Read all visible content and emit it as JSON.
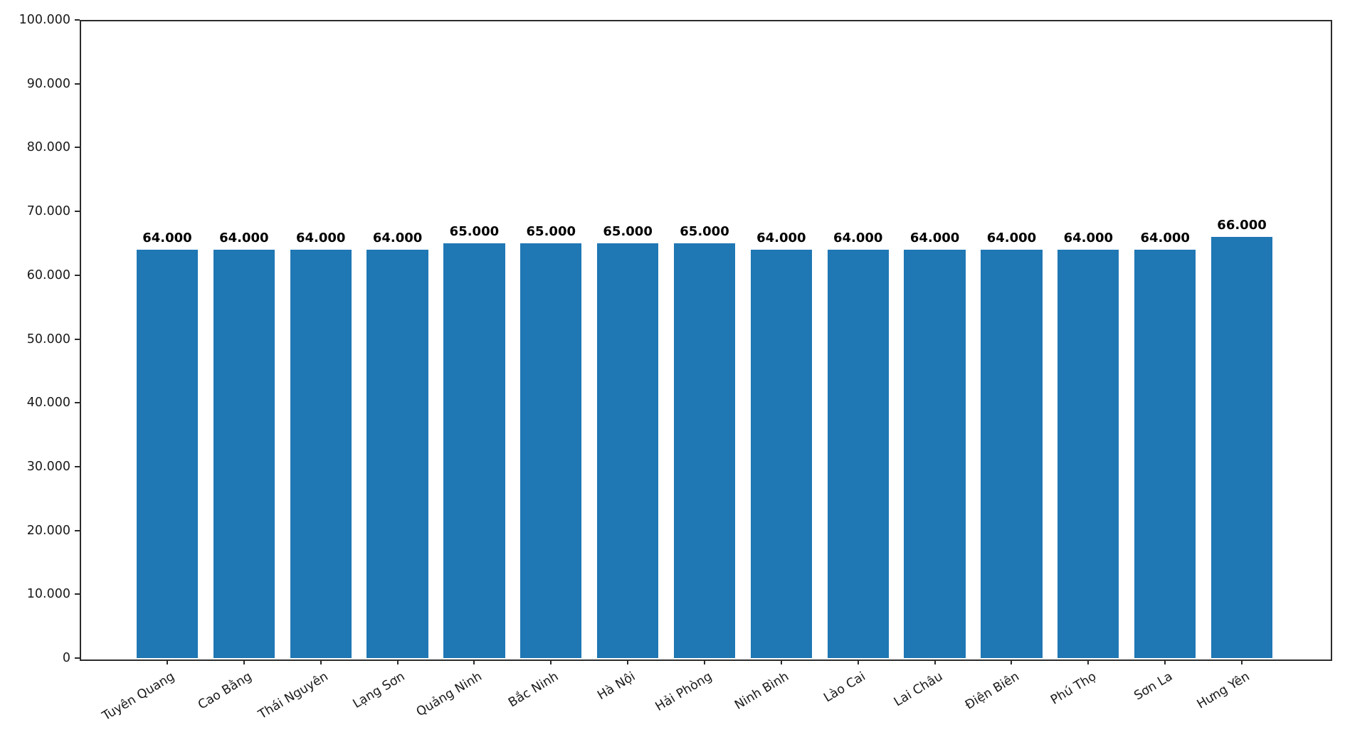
{
  "chart_data": {
    "type": "bar",
    "title": "",
    "xlabel": "",
    "ylabel": "",
    "categories": [
      "Tuyên Quang",
      "Cao Bằng",
      "Thái Nguyên",
      "Lạng Sơn",
      "Quảng Ninh",
      "Bắc Ninh",
      "Hà Nội",
      "Hải Phòng",
      "Ninh Bình",
      "Lào Cai",
      "Lai Châu",
      "Điện Biên",
      "Phú Thọ",
      "Sơn La",
      "Hưng Yên"
    ],
    "values": [
      64000,
      64000,
      64000,
      64000,
      65000,
      65000,
      65000,
      65000,
      64000,
      64000,
      64000,
      64000,
      64000,
      64000,
      66000
    ],
    "bar_labels": [
      "64.000",
      "64.000",
      "64.000",
      "64.000",
      "65.000",
      "65.000",
      "65.000",
      "65.000",
      "64.000",
      "64.000",
      "64.000",
      "64.000",
      "64.000",
      "64.000",
      "66.000"
    ],
    "ylim": [
      0,
      100000
    ],
    "y_tick_values": [
      0,
      10000,
      20000,
      30000,
      40000,
      50000,
      60000,
      70000,
      80000,
      90000,
      100000
    ],
    "y_tick_labels": [
      "0",
      "10.000",
      "20.000",
      "30.000",
      "40.000",
      "50.000",
      "60.000",
      "70.000",
      "80.000",
      "90.000",
      "100.000"
    ],
    "bar_color": "#1f77b4",
    "grid": false,
    "legend_position": "none",
    "x_tick_rotation_deg": -31
  }
}
